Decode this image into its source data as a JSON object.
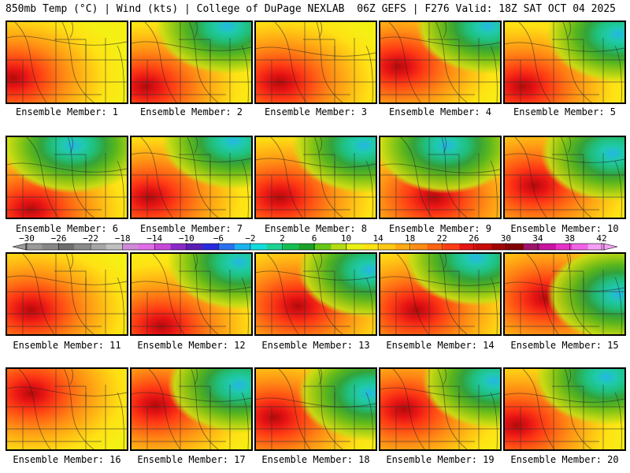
{
  "header": {
    "left": "850mb Temp (°C) | Wind (kts) | College of DuPage NEXLAB",
    "right": "06Z GEFS | F276 Valid: 18Z SAT OCT 04 2025"
  },
  "panels": [
    {
      "label": "Ensemble Member: 1",
      "warm": [
        0.05,
        0.7
      ],
      "cool": null
    },
    {
      "label": "Ensemble Member: 2",
      "warm": [
        0.12,
        0.8
      ],
      "cool": [
        0.8,
        0.05
      ]
    },
    {
      "label": "Ensemble Member: 3",
      "warm": [
        0.2,
        0.75
      ],
      "cool": null
    },
    {
      "label": "Ensemble Member: 4",
      "warm": [
        0.15,
        0.55
      ],
      "cool": [
        0.9,
        0.05
      ]
    },
    {
      "label": "Ensemble Member: 5",
      "warm": [
        0.15,
        0.8
      ],
      "cool": [
        0.95,
        0.15
      ]
    },
    {
      "label": "Ensemble Member: 6",
      "warm": [
        0.2,
        0.9
      ],
      "cool": [
        0.55,
        0.1
      ]
    },
    {
      "label": "Ensemble Member: 7",
      "warm": [
        0.15,
        0.75
      ],
      "cool": [
        0.85,
        0.05
      ]
    },
    {
      "label": "Ensemble Member: 8",
      "warm": [
        0.2,
        0.75
      ],
      "cool": [
        0.9,
        0.1
      ]
    },
    {
      "label": "Ensemble Member: 9",
      "warm": [
        0.45,
        0.75
      ],
      "cool": [
        0.55,
        0.1
      ]
    },
    {
      "label": "Ensemble Member: 10",
      "warm": [
        0.25,
        0.6
      ],
      "cool": [
        0.9,
        0.2
      ]
    },
    {
      "label": "Ensemble Member: 11",
      "warm": [
        0.2,
        0.7
      ],
      "cool": null
    },
    {
      "label": "Ensemble Member: 12",
      "warm": [
        0.25,
        0.9
      ],
      "cool": [
        0.9,
        0.1
      ]
    },
    {
      "label": "Ensemble Member: 13",
      "warm": [
        0.35,
        0.65
      ],
      "cool": [
        0.95,
        0.2
      ]
    },
    {
      "label": "Ensemble Member: 14",
      "warm": [
        0.3,
        0.7
      ],
      "cool": [
        0.8,
        0.05
      ]
    },
    {
      "label": "Ensemble Member: 15",
      "warm": [
        0.35,
        0.55
      ],
      "cool": [
        0.95,
        0.5
      ]
    },
    {
      "label": "Ensemble Member: 16",
      "warm": [
        0.2,
        0.3
      ],
      "cool": null
    },
    {
      "label": "Ensemble Member: 17",
      "warm": [
        0.2,
        0.45
      ],
      "cool": [
        0.9,
        0.2
      ]
    },
    {
      "label": "Ensemble Member: 18",
      "warm": [
        0.15,
        0.6
      ],
      "cool": [
        0.95,
        0.3
      ]
    },
    {
      "label": "Ensemble Member: 19",
      "warm": [
        0.2,
        0.5
      ],
      "cool": [
        0.95,
        0.15
      ]
    },
    {
      "label": "Ensemble Member: 20",
      "warm": [
        0.1,
        0.7
      ],
      "cool": [
        0.85,
        0.1
      ]
    }
  ],
  "colorbar": {
    "tick_labels": [
      "−30",
      "−26",
      "−22",
      "−18",
      "−14",
      "−10",
      "−6",
      "−2",
      "2",
      "6",
      "10",
      "14",
      "18",
      "22",
      "26",
      "30",
      "34",
      "38",
      "42"
    ],
    "colors": [
      "#9a9a9a",
      "#878787",
      "#6e6e6e",
      "#8a8a8a",
      "#a6a6a6",
      "#c0c0c0",
      "#d08ad8",
      "#e06ee8",
      "#c848d8",
      "#8c28c8",
      "#5a1eb4",
      "#2a2ae0",
      "#2870f0",
      "#19b4f0",
      "#14dcdc",
      "#1ed296",
      "#14be50",
      "#1aa028",
      "#64c814",
      "#b4dc14",
      "#ebf014",
      "#ffe114",
      "#ffc814",
      "#ffaa14",
      "#ff8c14",
      "#ff6414",
      "#ff3c14",
      "#e61414",
      "#c80a0a",
      "#a00505",
      "#800000",
      "#a0146e",
      "#c814a0",
      "#e632c8",
      "#f064e6",
      "#f5a0f5"
    ]
  }
}
